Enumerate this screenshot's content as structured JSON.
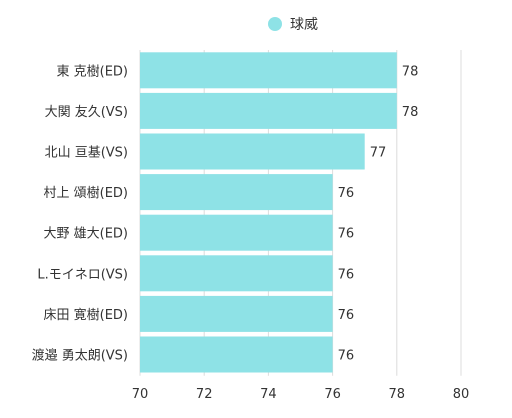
{
  "chart_data": {
    "type": "bar",
    "orientation": "horizontal",
    "series": [
      {
        "name": "球威",
        "color": "#8ee2e6",
        "values": [
          78,
          78,
          77,
          76,
          76,
          76,
          76,
          76
        ]
      }
    ],
    "categories": [
      "東 克樹(ED)",
      "大関 友久(VS)",
      "北山 亘基(VS)",
      "村上 頌樹(ED)",
      "大野 雄大(ED)",
      "L.モイネロ(VS)",
      "床田 寛樹(ED)",
      "渡邉 勇太朗(VS)"
    ],
    "xlim": [
      70,
      80
    ],
    "xticks": [
      70,
      72,
      74,
      76,
      78,
      80
    ],
    "grid": true,
    "legend": "top-center",
    "data_labels": true
  }
}
